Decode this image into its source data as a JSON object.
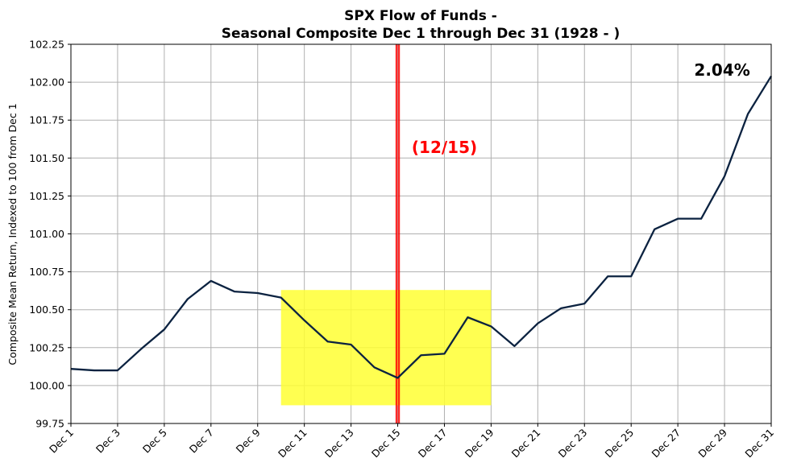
{
  "chart_data": {
    "type": "line",
    "title": "SPX Flow of Funds -",
    "subtitle": "Seasonal Composite Dec 1 through Dec 31 (1928 - )",
    "ylabel": "Composite Mean Return, Indexed to 100 from Dec 1",
    "xlabel": "",
    "ylim": [
      99.75,
      102.25
    ],
    "yticks": [
      "99.75",
      "100.00",
      "100.25",
      "100.50",
      "100.75",
      "101.00",
      "101.25",
      "101.50",
      "101.75",
      "102.00",
      "102.25"
    ],
    "x_tick_labels": [
      "Dec 1",
      "Dec 3",
      "Dec 5",
      "Dec 7",
      "Dec 9",
      "Dec 11",
      "Dec 13",
      "Dec 15",
      "Dec 17",
      "Dec 19",
      "Dec 21",
      "Dec 23",
      "Dec 25",
      "Dec 27",
      "Dec 29",
      "Dec 31"
    ],
    "grid": true,
    "x": [
      1,
      2,
      3,
      4,
      5,
      6,
      7,
      8,
      9,
      10,
      11,
      12,
      13,
      14,
      15,
      16,
      17,
      18,
      19,
      20,
      21,
      22,
      23,
      24,
      25,
      26,
      27,
      28,
      29,
      30,
      31
    ],
    "values": [
      100.11,
      100.1,
      100.1,
      100.24,
      100.37,
      100.57,
      100.69,
      100.62,
      100.61,
      100.58,
      100.43,
      100.29,
      100.27,
      100.12,
      100.05,
      100.2,
      100.21,
      100.45,
      100.39,
      100.26,
      100.41,
      100.51,
      100.54,
      100.72,
      100.72,
      101.03,
      101.1,
      101.1,
      101.38,
      101.79,
      102.04
    ],
    "line_color": "#0b2240",
    "highlight_box": {
      "x_start": 10,
      "x_end": 19,
      "y_start": 99.87,
      "y_end": 100.63,
      "color": "#ffff33"
    },
    "vertical_marker": {
      "x": 15,
      "color": "#ff0000"
    },
    "annotations": [
      {
        "text": "(12/15)",
        "x": 15.6,
        "y": 101.57,
        "color": "#ff0000"
      },
      {
        "text": "2.04%",
        "x": 27.7,
        "y": 102.08,
        "color": "#000000"
      }
    ]
  }
}
